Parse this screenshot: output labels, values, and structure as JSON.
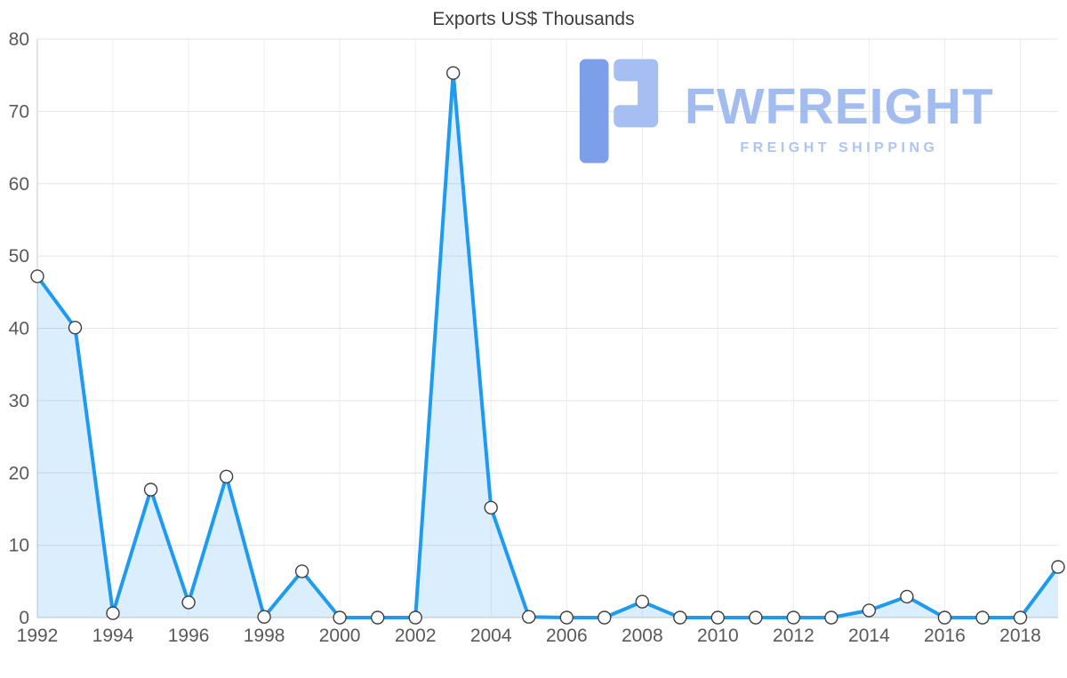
{
  "page": {
    "background": "#ffffff"
  },
  "chart_data": {
    "type": "area",
    "title": "Exports US$ Thousands",
    "x": [
      1992,
      1993,
      1994,
      1995,
      1996,
      1997,
      1998,
      1999,
      2000,
      2001,
      2002,
      2003,
      2004,
      2005,
      2006,
      2007,
      2008,
      2009,
      2010,
      2011,
      2012,
      2013,
      2014,
      2015,
      2016,
      2017,
      2018,
      2019
    ],
    "values": [
      47.2,
      40.1,
      0.6,
      17.7,
      2.1,
      19.5,
      0.1,
      6.4,
      0,
      0,
      0,
      75.3,
      15.2,
      0.1,
      0,
      0,
      2.2,
      0,
      0,
      0,
      0,
      0,
      1.0,
      2.9,
      0,
      0,
      0,
      7.0
    ],
    "xlabel": "",
    "ylabel": "",
    "ylim": [
      0,
      80
    ],
    "y_ticks": [
      0,
      10,
      20,
      30,
      40,
      50,
      60,
      70,
      80
    ],
    "x_ticks": [
      1992,
      1994,
      1996,
      1998,
      2000,
      2002,
      2004,
      2006,
      2008,
      2010,
      2012,
      2014,
      2016,
      2018
    ],
    "grid": "on",
    "legend": "none",
    "colors": {
      "line": "#1e9bf0",
      "fill": "rgba(33,150,243,0.16)",
      "marker_fill": "#ffffff",
      "marker_stroke": "#3f3f3f",
      "hgrid": "#e4e4e4",
      "vgrid": "#ededed",
      "axis": "#c8c8c8",
      "tick_label": "#595959",
      "title": "#3d3d3d"
    }
  },
  "watermark": {
    "brand": "FWFREIGHT",
    "tagline": "FREIGHT SHIPPING",
    "brand_color": "#a2bcf0",
    "tagline_color": "#aec5f4",
    "logo_dark": "#7d9ee9",
    "logo_light": "#a6bff2"
  }
}
